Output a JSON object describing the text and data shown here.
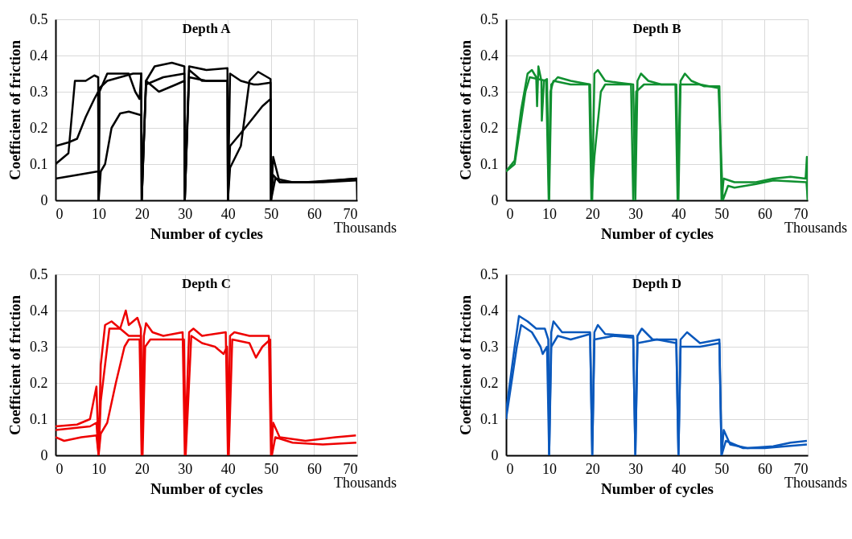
{
  "chart_data": [
    {
      "type": "line",
      "title": "Depth A",
      "xlabel": "Number of cycles",
      "ylabel": "Coefficient of friction",
      "annotations": [
        "Thousands"
      ],
      "xlim": [
        0,
        70
      ],
      "ylim": [
        0,
        0.5
      ],
      "xticks": [
        0,
        10,
        20,
        30,
        40,
        50,
        60,
        70
      ],
      "yticks": [
        0,
        0.1,
        0.2,
        0.3,
        0.4,
        0.5
      ],
      "grid": true,
      "series": [
        {
          "color": "#000000",
          "x": [
            0,
            3,
            5,
            7,
            9,
            9.9,
            10,
            10.2,
            12,
            15,
            18,
            19.9,
            20,
            21,
            24,
            28,
            29.9,
            30,
            31,
            34,
            39.9,
            40,
            40.5,
            44,
            48,
            49.9,
            50,
            50.5,
            52,
            58,
            64,
            69.9,
            70
          ],
          "values": [
            0.15,
            0.16,
            0.17,
            0.23,
            0.28,
            0.3,
            0,
            0.31,
            0.33,
            0.34,
            0.35,
            0.35,
            0,
            0.33,
            0.3,
            0.32,
            0.33,
            0,
            0.36,
            0.33,
            0.33,
            0,
            0.15,
            0.2,
            0.26,
            0.28,
            0,
            0.12,
            0.05,
            0.05,
            0.055,
            0.06,
            0
          ]
        },
        {
          "color": "#000000",
          "x": [
            0,
            3,
            4.5,
            7,
            9,
            9.9,
            10,
            10.2,
            12,
            17,
            18.5,
            19.5,
            19.9,
            20,
            21,
            23,
            27,
            29.9,
            30,
            31,
            35,
            39.9,
            40,
            40.5,
            43,
            46,
            47,
            49.9,
            50,
            50.5,
            52,
            60,
            69.9
          ],
          "values": [
            0.1,
            0.13,
            0.33,
            0.33,
            0.345,
            0.34,
            0,
            0.3,
            0.35,
            0.35,
            0.3,
            0.28,
            0.35,
            0,
            0.33,
            0.37,
            0.38,
            0.37,
            0,
            0.37,
            0.36,
            0.365,
            0,
            0.35,
            0.33,
            0.32,
            0.32,
            0.325,
            0,
            0.07,
            0.05,
            0.05,
            0.06
          ]
        },
        {
          "color": "#000000",
          "x": [
            0,
            5,
            9.9,
            10,
            10.5,
            11.5,
            13,
            15,
            17,
            19.9,
            20,
            21,
            25,
            29.9,
            30,
            31,
            35,
            39.9,
            40,
            40.5,
            43,
            45,
            47,
            49.9,
            50,
            51,
            55,
            62,
            69.9
          ],
          "values": [
            0.06,
            0.07,
            0.08,
            0,
            0.08,
            0.1,
            0.2,
            0.24,
            0.245,
            0.235,
            0,
            0.32,
            0.34,
            0.35,
            0,
            0.34,
            0.33,
            0.33,
            0,
            0.09,
            0.15,
            0.33,
            0.355,
            0.335,
            0,
            0.06,
            0.05,
            0.05,
            0.055
          ]
        }
      ]
    },
    {
      "type": "line",
      "title": "Depth B",
      "xlabel": "Number of cycles",
      "ylabel": "Coefficient of friction",
      "annotations": [
        "Thousands"
      ],
      "xlim": [
        0,
        70
      ],
      "ylim": [
        0,
        0.5
      ],
      "xticks": [
        0,
        10,
        20,
        30,
        40,
        50,
        60,
        70
      ],
      "yticks": [
        0,
        0.1,
        0.2,
        0.3,
        0.4,
        0.5
      ],
      "grid": true,
      "series": [
        {
          "color": "#109030",
          "x": [
            0,
            2,
            3.5,
            5,
            6,
            7,
            7.2,
            7.5,
            8.2,
            8.3,
            8.8,
            9.5,
            10,
            10.5,
            12,
            15,
            19.5,
            20,
            20.5,
            21.3,
            23,
            26,
            29.5,
            30,
            30.5,
            31.3,
            33,
            36,
            39.5,
            40,
            40.5,
            41.5,
            43,
            46,
            49.5,
            50,
            50.5,
            53,
            58,
            62,
            66,
            69.5,
            69.8,
            70
          ],
          "values": [
            0.08,
            0.11,
            0.25,
            0.35,
            0.36,
            0.34,
            0.26,
            0.37,
            0.33,
            0.22,
            0.33,
            0.335,
            0,
            0.32,
            0.34,
            0.33,
            0.32,
            0,
            0.35,
            0.36,
            0.33,
            0.325,
            0.32,
            0,
            0.33,
            0.35,
            0.33,
            0.32,
            0.32,
            0,
            0.33,
            0.35,
            0.33,
            0.315,
            0.315,
            0,
            0.06,
            0.05,
            0.05,
            0.06,
            0.065,
            0.06,
            0.12,
            0
          ]
        },
        {
          "color": "#109030",
          "x": [
            0,
            2,
            4.5,
            5.5,
            9.3,
            9.9,
            10.3,
            11,
            15,
            19.3,
            19.8,
            20.5,
            22,
            23,
            29,
            29.5,
            30.2,
            32,
            39.3,
            39.8,
            40.4,
            45,
            49.3,
            50.3,
            51.5,
            53,
            58,
            62,
            69.7,
            70
          ],
          "values": [
            0.08,
            0.1,
            0.3,
            0.34,
            0.33,
            0,
            0.3,
            0.33,
            0.32,
            0.32,
            0,
            0.12,
            0.3,
            0.32,
            0.32,
            0,
            0.3,
            0.32,
            0.32,
            0,
            0.32,
            0.32,
            0.31,
            0,
            0.04,
            0.035,
            0.045,
            0.055,
            0.05,
            0
          ]
        }
      ]
    },
    {
      "type": "line",
      "title": "Depth C",
      "xlabel": "Number of cycles",
      "ylabel": "Coefficient of friction",
      "annotations": [
        "Thousands"
      ],
      "xlim": [
        0,
        70
      ],
      "ylim": [
        0,
        0.5
      ],
      "xticks": [
        0,
        10,
        20,
        30,
        40,
        50,
        60,
        70
      ],
      "yticks": [
        0,
        0.1,
        0.2,
        0.3,
        0.4,
        0.5
      ],
      "grid": true,
      "series": [
        {
          "color": "#ee0000",
          "x": [
            0,
            5,
            8,
            9.5,
            10,
            10.5,
            11.5,
            13,
            15,
            16.3,
            17,
            19,
            19.8,
            20,
            20.5,
            21,
            22.5,
            25,
            29.5,
            30,
            31,
            32,
            34,
            39.5,
            40,
            40.5,
            41.5,
            45,
            49.5,
            50,
            50.5,
            52,
            58,
            65,
            69.7
          ],
          "values": [
            0.08,
            0.085,
            0.1,
            0.19,
            0,
            0.25,
            0.36,
            0.37,
            0.35,
            0.4,
            0.36,
            0.38,
            0.35,
            0,
            0.33,
            0.365,
            0.34,
            0.33,
            0.34,
            0,
            0.34,
            0.35,
            0.33,
            0.34,
            0,
            0.33,
            0.34,
            0.33,
            0.33,
            0,
            0.09,
            0.05,
            0.04,
            0.05,
            0.055
          ]
        },
        {
          "color": "#ee0000",
          "x": [
            0,
            8,
            9.5,
            10,
            10.5,
            12.5,
            15,
            17,
            19.8,
            20.2,
            20.8,
            22,
            29.8,
            30.2,
            31.5,
            34,
            37,
            39,
            39.8,
            40.2,
            41,
            45,
            46.5,
            48,
            49.8,
            50.2,
            51,
            55,
            62,
            69.8
          ],
          "values": [
            0.07,
            0.08,
            0.09,
            0,
            0.15,
            0.35,
            0.35,
            0.33,
            0.33,
            0,
            0.3,
            0.32,
            0.32,
            0,
            0.33,
            0.31,
            0.3,
            0.28,
            0.3,
            0,
            0.32,
            0.31,
            0.27,
            0.3,
            0.32,
            0,
            0.05,
            0.035,
            0.03,
            0.035
          ]
        },
        {
          "color": "#ee0000",
          "x": [
            0,
            2,
            6,
            9.5,
            10,
            10.5,
            12,
            14,
            16,
            17,
            19.5,
            20
          ],
          "values": [
            0.05,
            0.04,
            0.05,
            0.055,
            0,
            0.06,
            0.09,
            0.2,
            0.3,
            0.32,
            0.32,
            0
          ]
        }
      ]
    },
    {
      "type": "line",
      "title": "Depth D",
      "xlabel": "Number of cycles",
      "ylabel": "Coefficient of friction",
      "annotations": [
        "Thousands"
      ],
      "xlim": [
        0,
        70
      ],
      "ylim": [
        0,
        0.5
      ],
      "xticks": [
        0,
        10,
        20,
        30,
        40,
        50,
        60,
        70
      ],
      "yticks": [
        0,
        0.1,
        0.2,
        0.3,
        0.4,
        0.5
      ],
      "grid": true,
      "series": [
        {
          "color": "#0a58bc",
          "x": [
            0,
            2,
            3,
            5,
            7,
            9,
            9.8,
            10,
            10.5,
            11,
            13,
            19.5,
            20,
            20.5,
            21.3,
            23,
            29.5,
            30,
            30.5,
            31.5,
            34,
            39.5,
            40,
            40.5,
            42,
            45,
            49.5,
            50,
            50.5,
            52,
            56,
            62,
            66,
            69.8
          ],
          "values": [
            0.12,
            0.3,
            0.385,
            0.37,
            0.35,
            0.35,
            0.32,
            0,
            0.34,
            0.37,
            0.34,
            0.34,
            0,
            0.34,
            0.36,
            0.335,
            0.33,
            0,
            0.33,
            0.35,
            0.32,
            0.32,
            0,
            0.32,
            0.34,
            0.31,
            0.32,
            0,
            0.07,
            0.03,
            0.02,
            0.025,
            0.035,
            0.04
          ]
        },
        {
          "color": "#0a58bc",
          "x": [
            0,
            2.5,
            3.5,
            6,
            8,
            8.5,
            9.5,
            10,
            10.5,
            12,
            15,
            19.5,
            20,
            20.5,
            25,
            29.5,
            30,
            30.5,
            35,
            39.5,
            40,
            40.5,
            45,
            49.5,
            50,
            51,
            55,
            60,
            69.8
          ],
          "values": [
            0.1,
            0.3,
            0.36,
            0.34,
            0.3,
            0.28,
            0.3,
            0,
            0.3,
            0.33,
            0.32,
            0.335,
            0,
            0.32,
            0.33,
            0.325,
            0,
            0.31,
            0.32,
            0.31,
            0,
            0.3,
            0.3,
            0.31,
            0,
            0.04,
            0.02,
            0.02,
            0.03
          ]
        }
      ]
    }
  ]
}
